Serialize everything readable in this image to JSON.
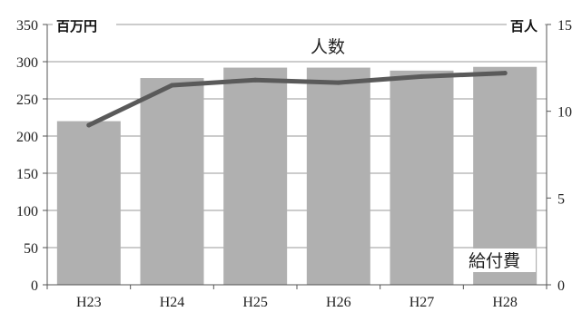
{
  "chart_data": {
    "type": "bar+line",
    "categories": [
      "H23",
      "H24",
      "H25",
      "H26",
      "H27",
      "H28"
    ],
    "series": [
      {
        "name": "給付費",
        "type": "bar",
        "axis": "left",
        "values": [
          220,
          278,
          292,
          292,
          288,
          293
        ],
        "color": "#b0b0b0"
      },
      {
        "name": "人数",
        "type": "line",
        "axis": "right",
        "values": [
          9.2,
          11.5,
          11.8,
          11.65,
          12.0,
          12.2
        ],
        "color": "#5a5a5a"
      }
    ],
    "y_left": {
      "unit": "百万円",
      "min": 0,
      "max": 350,
      "ticks": [
        0,
        50,
        100,
        150,
        200,
        250,
        300,
        350
      ]
    },
    "y_right": {
      "unit": "百人",
      "min": 0,
      "max": 15,
      "ticks": [
        0,
        5,
        10,
        15
      ]
    },
    "grid": true,
    "title": ""
  }
}
